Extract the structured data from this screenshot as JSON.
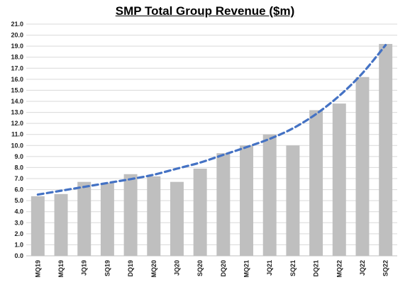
{
  "chart_data": {
    "type": "bar",
    "title": "SMP Total Group Revenue  ($m)",
    "xlabel": "",
    "ylabel": "",
    "categories": [
      "MQ19",
      "MQ19",
      "JQ19",
      "SQ19",
      "DQ19",
      "MQ20",
      "JQ20",
      "SQ20",
      "DQ20",
      "MQ21",
      "JQ21",
      "SQ21",
      "DQ21",
      "MQ22",
      "JQ22",
      "SQ22"
    ],
    "series": [
      {
        "type": "bar",
        "values": [
          5.4,
          5.6,
          6.7,
          6.6,
          7.4,
          7.2,
          6.7,
          7.9,
          9.3,
          10.0,
          11.0,
          10.0,
          13.2,
          13.8,
          16.2,
          19.2
        ]
      },
      {
        "type": "trendline",
        "style": "dashed",
        "values": [
          5.55,
          5.9,
          6.25,
          6.6,
          6.95,
          7.35,
          7.9,
          8.45,
          9.15,
          9.85,
          10.6,
          11.55,
          12.85,
          14.5,
          16.55,
          19.1
        ]
      }
    ],
    "ylim": [
      0,
      21
    ],
    "ytick_step": 1,
    "grid": true,
    "legend": "none",
    "colors": {
      "bar": "#bfbfbf",
      "trendline": "#4472c4",
      "grid": "#d9d9d9"
    }
  }
}
